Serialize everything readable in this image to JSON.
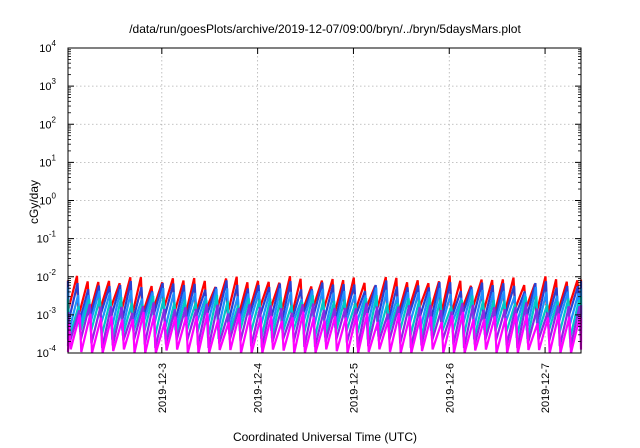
{
  "chart_data": {
    "type": "line",
    "title": "/data/run/goesPlots/archive/2019-12-07/09:00/bryn/../bryn/5daysMars.plot",
    "xlabel": "Coordinated Universal Time (UTC)",
    "ylabel": "cGy/day",
    "x_range": [
      "2019-12-02 00:30",
      "2019-12-07 09:00"
    ],
    "x_ticks": [
      "2019-12-3",
      "2019-12-4",
      "2019-12-5",
      "2019-12-6",
      "2019-12-7"
    ],
    "y_scale": "log",
    "ylim": [
      0.0001,
      10000
    ],
    "y_ticks": [
      {
        "base": "10",
        "exp": "-4"
      },
      {
        "base": "10",
        "exp": "-3"
      },
      {
        "base": "10",
        "exp": "-2"
      },
      {
        "base": "10",
        "exp": "-1"
      },
      {
        "base": "10",
        "exp": "0"
      },
      {
        "base": "10",
        "exp": "1"
      },
      {
        "base": "10",
        "exp": "2"
      },
      {
        "base": "10",
        "exp": "3"
      },
      {
        "base": "10",
        "exp": "4"
      }
    ],
    "grid": true,
    "pattern": {
      "type": "sawtooth",
      "cycles_per_day": 9,
      "description_of_curves": "each series rises linearly in log-space then drops sharply; series offset in level"
    },
    "series": [
      {
        "color": "#ff0000",
        "peak": 0.008,
        "trough": 0.0012
      },
      {
        "color": "#2a3fcf",
        "peak": 0.006,
        "trough": 0.0008
      },
      {
        "color": "#1e90ff",
        "peak": 0.004,
        "trough": 0.0005
      },
      {
        "color": "#00c8c8",
        "peak": 0.0025,
        "trough": 0.0003
      },
      {
        "color": "#8a2be2",
        "peak": 0.0016,
        "trough": 0.00018
      },
      {
        "color": "#ff00ff",
        "peak": 0.0009,
        "trough": 0.0001
      }
    ]
  }
}
